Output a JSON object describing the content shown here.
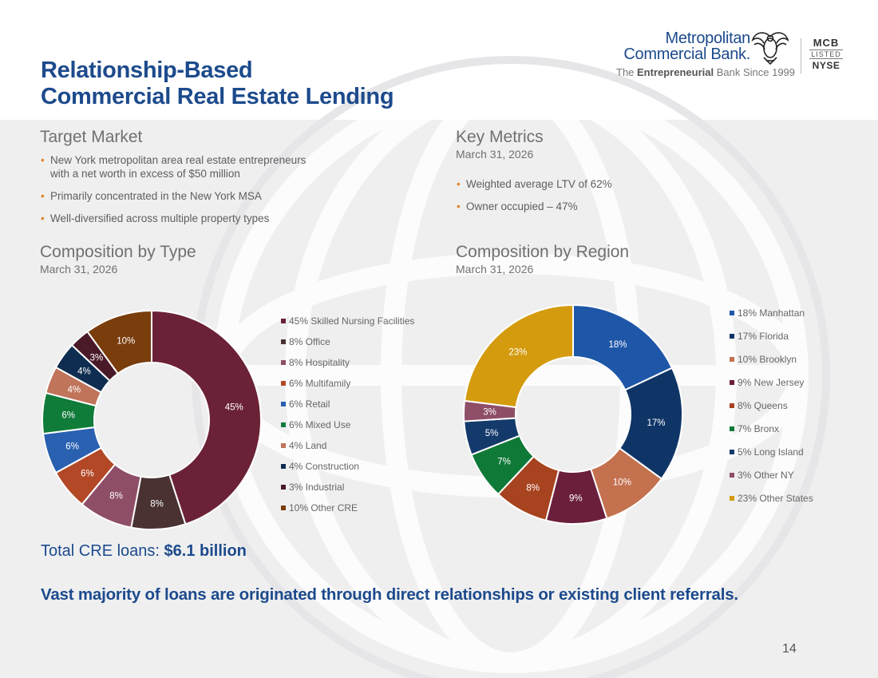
{
  "title_line1": "Relationship-Based",
  "title_line2": "Commercial Real Estate Lending",
  "logo": {
    "name_line1": "Metropolitan",
    "name_line2": "Commercial Bank.",
    "tagline_pre": "The ",
    "tagline_bold": "Entrepreneurial",
    "tagline_post": " Bank Since 1999",
    "ticker": "MCB",
    "listed": "LISTED",
    "exchange": "NYSE"
  },
  "target_market": {
    "heading": "Target Market",
    "bullets": [
      "New York metropolitan area real estate entrepreneurs with a net worth in excess of $50 million",
      "Primarily concentrated in the New York MSA",
      "Well-diversified across multiple property types"
    ]
  },
  "key_metrics": {
    "heading": "Key Metrics",
    "date": "March 31, 2026",
    "bullets": [
      "Weighted average LTV of 62%",
      "Owner occupied – 47%"
    ]
  },
  "chart_data": [
    {
      "type": "pie",
      "title": "Composition by Type",
      "subtitle": "March 31, 2026",
      "legend_position": "right",
      "categories": [
        "Skilled Nursing Facilities",
        "Office",
        "Hospitality",
        "Multifamily",
        "Retail",
        "Mixed Use",
        "Land",
        "Construction",
        "Industrial",
        "Other CRE"
      ],
      "values": [
        45,
        8,
        8,
        6,
        6,
        6,
        4,
        4,
        3,
        10
      ],
      "colors": [
        "#6b2236",
        "#4a3233",
        "#8f4e67",
        "#b24826",
        "#2a60b0",
        "#0f7c3a",
        "#c0745a",
        "#0e2d50",
        "#4a1a29",
        "#7a3d0c"
      ],
      "data_labels": [
        "45%",
        "8%",
        "8%",
        "6%",
        "6%",
        "6%",
        "4%",
        "4%",
        "3%",
        "10%"
      ],
      "legend_labels": [
        "45% Skilled Nursing Facilities",
        "8% Office",
        "8% Hospitality",
        "6% Multifamily",
        "6% Retail",
        "6% Mixed Use",
        "4% Land",
        "4% Construction",
        "3% Industrial",
        "10% Other CRE"
      ]
    },
    {
      "type": "pie",
      "title": "Composition by Region",
      "subtitle": "March 31, 2026",
      "legend_position": "right",
      "categories": [
        "Manhattan",
        "Florida",
        "Brooklyn",
        "New Jersey",
        "Queens",
        "Bronx",
        "Long Island",
        "Other NY",
        "Other States"
      ],
      "values": [
        18,
        17,
        10,
        9,
        8,
        7,
        5,
        3,
        23
      ],
      "colors": [
        "#1f57a8",
        "#0f3566",
        "#c4714f",
        "#6b1f3c",
        "#a8431f",
        "#0f7a38",
        "#143a6b",
        "#8f4e67",
        "#d49b0e"
      ],
      "data_labels": [
        "18%",
        "17%",
        "10%",
        "9%",
        "8%",
        "7%",
        "5%",
        "3%",
        "23%"
      ],
      "legend_labels": [
        "18% Manhattan",
        "17% Florida",
        "10% Brooklyn",
        "9% New Jersey",
        "8% Queens",
        "7% Bronx",
        "5% Long Island",
        "3% Other NY",
        "23% Other States"
      ]
    }
  ],
  "total": {
    "label": "Total CRE loans: ",
    "value": "$6.1 billion"
  },
  "footer_statement": "Vast majority of loans are originated through direct relationships or existing client referrals.",
  "page_number": "14"
}
